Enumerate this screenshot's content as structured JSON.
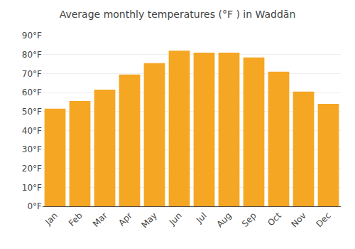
{
  "chart_data": {
    "type": "bar",
    "title": "Average monthly temperatures (°F ) in Waddān",
    "categories": [
      "Jan",
      "Feb",
      "Mar",
      "Apr",
      "May",
      "Jun",
      "Jul",
      "Aug",
      "Sep",
      "Oct",
      "Nov",
      "Dec"
    ],
    "values": [
      51.5,
      55.5,
      61.5,
      69.5,
      75.5,
      82,
      81,
      81,
      78.5,
      71,
      60.5,
      54
    ],
    "color": "#F5A623",
    "ylim": [
      0,
      90
    ],
    "yticks": [
      {
        "value": 0,
        "label": "0°F"
      },
      {
        "value": 10,
        "label": "10°F"
      },
      {
        "value": 20,
        "label": "20°F"
      },
      {
        "value": 30,
        "label": "30°F"
      },
      {
        "value": 40,
        "label": "40°F"
      },
      {
        "value": 50,
        "label": "50°F"
      },
      {
        "value": 60,
        "label": "60°F"
      },
      {
        "value": 70,
        "label": "70°F"
      },
      {
        "value": 80,
        "label": "80°F"
      },
      {
        "value": 90,
        "label": "90°F"
      }
    ],
    "grid": true
  }
}
